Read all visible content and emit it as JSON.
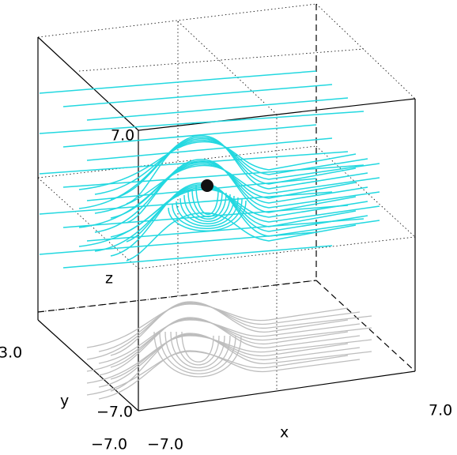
{
  "axes": {
    "x_label": "x",
    "y_label": "y",
    "z_label": "z",
    "x_min": "−7.0",
    "x_max": "7.0",
    "y_min": "−7.0",
    "y_max": "3.0",
    "z_min": "−7.0",
    "z_max": "7.0",
    "corner_min": "−7.0"
  }
}
